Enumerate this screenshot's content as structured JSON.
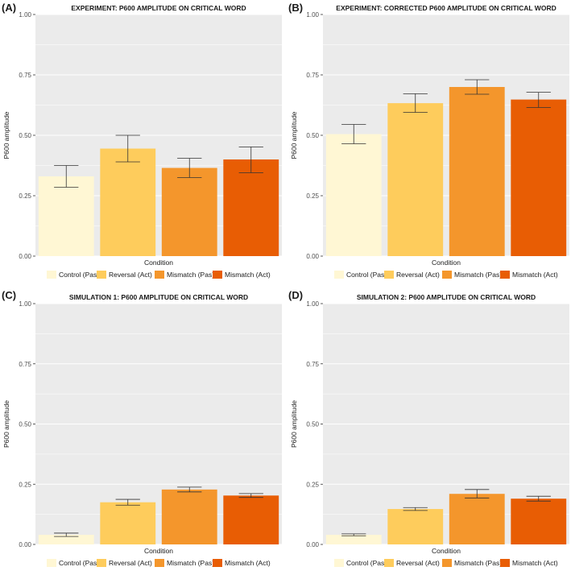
{
  "chart_data": [
    {
      "type": "bar",
      "panel_label": "(A)",
      "title": "EXPERIMENT: P600 AMPLITUDE ON CRITICAL WORD",
      "xlabel": "Condition",
      "ylabel": "P600 amplitude",
      "ylim": [
        0,
        1
      ],
      "yticks": [
        "0.00",
        "0.25",
        "0.50",
        "0.75",
        "1.00"
      ],
      "categories": [
        "Control (Pas)",
        "Reversal (Act)",
        "Mismatch (Pas)",
        "Mismatch (Act)"
      ],
      "values": [
        0.33,
        0.445,
        0.365,
        0.4
      ],
      "error_low": [
        0.285,
        0.39,
        0.325,
        0.345
      ],
      "error_high": [
        0.375,
        0.5,
        0.405,
        0.452
      ],
      "legend": "bottom"
    },
    {
      "type": "bar",
      "panel_label": "(B)",
      "title": "EXPERIMENT: CORRECTED P600 AMPLITUDE ON CRITICAL WORD",
      "xlabel": "Condition",
      "ylabel": "P600 amplitude",
      "ylim": [
        0,
        1
      ],
      "yticks": [
        "0.00",
        "0.25",
        "0.50",
        "0.75",
        "1.00"
      ],
      "categories": [
        "Control (Pas)",
        "Reversal (Act)",
        "Mismatch (Pas)",
        "Mismatch (Act)"
      ],
      "values": [
        0.505,
        0.633,
        0.7,
        0.648
      ],
      "error_low": [
        0.465,
        0.595,
        0.67,
        0.615
      ],
      "error_high": [
        0.545,
        0.672,
        0.73,
        0.678
      ],
      "legend": "bottom"
    },
    {
      "type": "bar",
      "panel_label": "(C)",
      "title": "SIMULATION 1: P600 AMPLITUDE ON CRITICAL WORD",
      "xlabel": "Condition",
      "ylabel": "P600 amplitude",
      "ylim": [
        0,
        1
      ],
      "yticks": [
        "0.00",
        "0.25",
        "0.50",
        "0.75",
        "1.00"
      ],
      "categories": [
        "Control (Pas)",
        "Reversal (Act)",
        "Mismatch (Pas)",
        "Mismatch (Act)"
      ],
      "values": [
        0.04,
        0.175,
        0.228,
        0.203
      ],
      "error_low": [
        0.033,
        0.163,
        0.218,
        0.195
      ],
      "error_high": [
        0.047,
        0.187,
        0.238,
        0.211
      ],
      "legend": "bottom"
    },
    {
      "type": "bar",
      "panel_label": "(D)",
      "title": "SIMULATION 2: P600 AMPLITUDE ON CRITICAL WORD",
      "xlabel": "Condition",
      "ylabel": "P600 amplitude",
      "ylim": [
        0,
        1
      ],
      "yticks": [
        "0.00",
        "0.25",
        "0.50",
        "0.75",
        "1.00"
      ],
      "categories": [
        "Control (Pas)",
        "Reversal (Act)",
        "Mismatch (Pas)",
        "Mismatch (Act)"
      ],
      "values": [
        0.04,
        0.147,
        0.21,
        0.19
      ],
      "error_low": [
        0.036,
        0.141,
        0.193,
        0.18
      ],
      "error_high": [
        0.044,
        0.153,
        0.228,
        0.2
      ],
      "legend": "bottom"
    }
  ],
  "colors": {
    "bars": [
      "#fff7d4",
      "#fecc5c",
      "#f4962c",
      "#e85d04"
    ],
    "panel_bg": "#ebebeb",
    "grid": "#ffffff",
    "error_bar": "#333333"
  }
}
